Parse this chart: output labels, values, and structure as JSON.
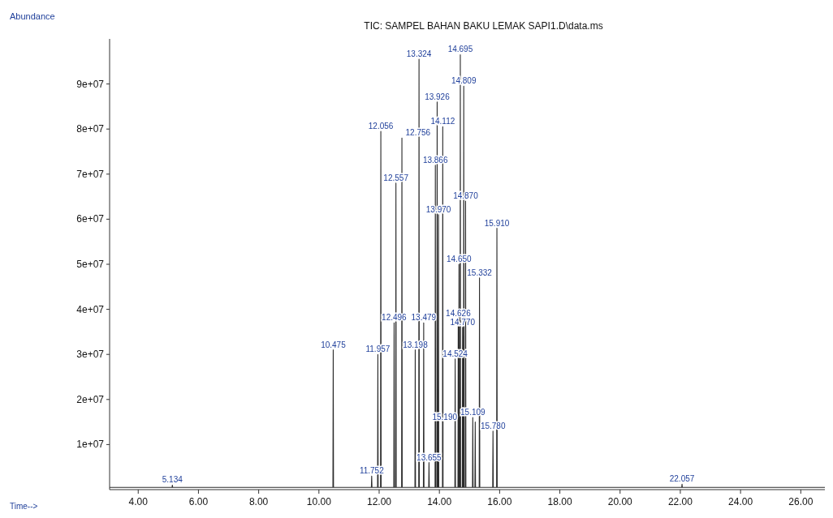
{
  "chart_data": {
    "type": "line",
    "title": "TIC: SAMPEL BAHAN BAKU LEMAK SAPI1.D\\data.ms",
    "xlabel": "Time-->",
    "ylabel": "Abundance",
    "xlim": [
      3.05,
      26.8
    ],
    "xticks": [
      {
        "value": 4,
        "label": "4.00"
      },
      {
        "value": 6,
        "label": "6.00"
      },
      {
        "value": 8,
        "label": "8.00"
      },
      {
        "value": 10,
        "label": "10.00"
      },
      {
        "value": 12,
        "label": "12.00"
      },
      {
        "value": 14,
        "label": "14.00"
      },
      {
        "value": 16,
        "label": "16.00"
      },
      {
        "value": 18,
        "label": "18.00"
      },
      {
        "value": 20,
        "label": "20.00"
      },
      {
        "value": 22,
        "label": "22.00"
      },
      {
        "value": 24,
        "label": "24.00"
      },
      {
        "value": 26,
        "label": "26.00"
      }
    ],
    "ylim": [
      0,
      100000000
    ],
    "yticks": [
      {
        "value": 10000000,
        "label": "1e+07"
      },
      {
        "value": 20000000,
        "label": "2e+07"
      },
      {
        "value": 30000000,
        "label": "3e+07"
      },
      {
        "value": 40000000,
        "label": "4e+07"
      },
      {
        "value": 50000000,
        "label": "5e+07"
      },
      {
        "value": 60000000,
        "label": "6e+07"
      },
      {
        "value": 70000000,
        "label": "7e+07"
      },
      {
        "value": 80000000,
        "label": "8e+07"
      },
      {
        "value": 90000000,
        "label": "9e+07"
      }
    ],
    "grid": false,
    "marker": "none",
    "line_style": "solid",
    "series": [
      {
        "color": "#2b2b2b",
        "x": [
          3.05,
          5.124,
          5.134,
          5.144,
          10.465,
          10.475,
          10.485,
          11.742,
          11.752,
          11.762,
          11.947,
          11.957,
          11.967,
          12.046,
          12.056,
          12.066,
          12.486,
          12.496,
          12.506,
          12.547,
          12.557,
          12.567,
          12.746,
          12.756,
          12.766,
          13.188,
          13.198,
          13.208,
          13.314,
          13.324,
          13.334,
          13.469,
          13.479,
          13.489,
          13.645,
          13.655,
          13.665,
          13.856,
          13.866,
          13.876,
          13.916,
          13.926,
          13.936,
          13.96,
          13.97,
          13.98,
          14.102,
          14.112,
          14.122,
          14.514,
          14.524,
          14.534,
          14.616,
          14.626,
          14.636,
          14.64,
          14.65,
          14.66,
          14.685,
          14.695,
          14.705,
          14.76,
          14.77,
          14.78,
          14.799,
          14.809,
          14.819,
          14.86,
          14.87,
          14.88,
          15.099,
          15.109,
          15.119,
          15.18,
          15.19,
          15.2,
          15.322,
          15.332,
          15.342,
          15.77,
          15.78,
          15.79,
          15.9,
          15.91,
          15.92,
          22.047,
          22.057,
          22.067,
          26.8
        ],
        "values": [
          500000,
          500000,
          1000000,
          500000,
          500000,
          31000000,
          500000,
          500000,
          3000000,
          500000,
          500000,
          30000000,
          500000,
          500000,
          79500000,
          500000,
          500000,
          37000000,
          500000,
          500000,
          68000000,
          500000,
          500000,
          78000000,
          500000,
          500000,
          31000000,
          500000,
          500000,
          95500000,
          500000,
          500000,
          37000000,
          500000,
          500000,
          6000000,
          500000,
          500000,
          72000000,
          500000,
          500000,
          86000000,
          500000,
          500000,
          61000000,
          500000,
          500000,
          80500000,
          500000,
          500000,
          29000000,
          500000,
          500000,
          38000000,
          500000,
          500000,
          50000000,
          500000,
          500000,
          96500000,
          500000,
          500000,
          36000000,
          500000,
          500000,
          89500000,
          500000,
          500000,
          64000000,
          500000,
          500000,
          16000000,
          500000,
          500000,
          15000000,
          500000,
          500000,
          47000000,
          500000,
          500000,
          13000000,
          500000,
          500000,
          58000000,
          500000,
          500000,
          1200000,
          500000,
          500000
        ]
      }
    ],
    "annotations": [
      {
        "text": "14.695",
        "x": 14.695,
        "y": 96500000
      },
      {
        "text": "13.324",
        "x": 13.324,
        "y": 95500000
      },
      {
        "text": "14.809",
        "x": 14.809,
        "y": 89500000
      },
      {
        "text": "13.926",
        "x": 13.926,
        "y": 86000000
      },
      {
        "text": "14.112",
        "x": 14.112,
        "y": 80500000
      },
      {
        "text": "12.056",
        "x": 12.056,
        "y": 79500000
      },
      {
        "text": "12.756",
        "x": 12.756,
        "y": 78000000
      },
      {
        "text": "13.866",
        "x": 13.866,
        "y": 72000000
      },
      {
        "text": "12.557",
        "x": 12.557,
        "y": 68000000
      },
      {
        "text": "14.870",
        "x": 14.87,
        "y": 64000000
      },
      {
        "text": "13.970",
        "x": 13.97,
        "y": 61000000
      },
      {
        "text": "15.910",
        "x": 15.91,
        "y": 58000000
      },
      {
        "text": "14.650",
        "x": 14.65,
        "y": 50000000
      },
      {
        "text": "15.332",
        "x": 15.332,
        "y": 47000000
      },
      {
        "text": "14.626",
        "x": 14.626,
        "y": 38000000
      },
      {
        "text": "12.496",
        "x": 12.496,
        "y": 37000000
      },
      {
        "text": "13.479",
        "x": 13.479,
        "y": 37000000
      },
      {
        "text": "14.770",
        "x": 14.77,
        "y": 36000000
      },
      {
        "text": "10.475",
        "x": 10.475,
        "y": 31000000
      },
      {
        "text": "13.198",
        "x": 13.198,
        "y": 31000000
      },
      {
        "text": "11.957",
        "x": 11.957,
        "y": 30000000
      },
      {
        "text": "14.524",
        "x": 14.524,
        "y": 29000000
      },
      {
        "text": "15.109",
        "x": 15.109,
        "y": 16000000
      },
      {
        "text": "15.190",
        "x": 15.19,
        "y": 15000000
      },
      {
        "text": "15.780",
        "x": 15.78,
        "y": 13000000
      },
      {
        "text": "13.655",
        "x": 13.655,
        "y": 6000000
      },
      {
        "text": "11.752",
        "x": 11.752,
        "y": 3000000
      },
      {
        "text": "22.057",
        "x": 22.057,
        "y": 1200000
      },
      {
        "text": "5.134",
        "x": 5.134,
        "y": 1000000
      }
    ]
  }
}
